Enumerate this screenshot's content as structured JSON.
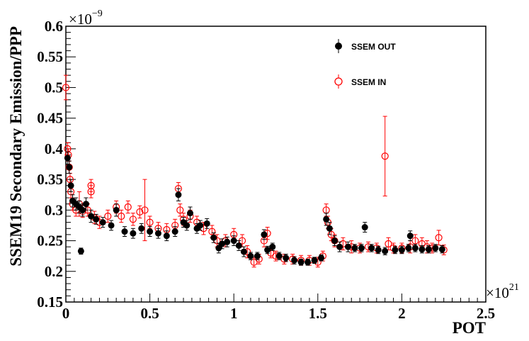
{
  "chart_data": {
    "type": "scatter",
    "xlabel": "POT",
    "ylabel": "SSEM19 Secondary Emission/PPP",
    "x_multiplier": "×10",
    "x_multiplier_exp": "21",
    "y_multiplier": "×10",
    "y_multiplier_exp": "−9",
    "xlim": [
      0,
      2.5
    ],
    "ylim": [
      0.15,
      0.6
    ],
    "x_ticks": [
      "0",
      "0.5",
      "1",
      "1.5",
      "2",
      "2.5"
    ],
    "y_ticks": [
      "0.15",
      "0.2",
      "0.25",
      "0.3",
      "0.35",
      "0.4",
      "0.45",
      "0.5",
      "0.55",
      "0.6"
    ],
    "legend_position": "top-right",
    "series": [
      {
        "name": "SSEM OUT",
        "marker": "filled-circle",
        "color": "#000000",
        "points": [
          [
            0.01,
            0.385,
            0.01
          ],
          [
            0.02,
            0.37,
            0.01
          ],
          [
            0.03,
            0.34,
            0.01
          ],
          [
            0.04,
            0.315,
            0.01
          ],
          [
            0.06,
            0.31,
            0.01
          ],
          [
            0.08,
            0.305,
            0.01
          ],
          [
            0.09,
            0.233,
            0.005
          ],
          [
            0.1,
            0.3,
            0.01
          ],
          [
            0.12,
            0.31,
            0.01
          ],
          [
            0.15,
            0.29,
            0.01
          ],
          [
            0.18,
            0.285,
            0.008
          ],
          [
            0.22,
            0.28,
            0.008
          ],
          [
            0.27,
            0.275,
            0.008
          ],
          [
            0.3,
            0.3,
            0.01
          ],
          [
            0.35,
            0.265,
            0.008
          ],
          [
            0.4,
            0.262,
            0.008
          ],
          [
            0.45,
            0.27,
            0.008
          ],
          [
            0.5,
            0.265,
            0.008
          ],
          [
            0.55,
            0.262,
            0.008
          ],
          [
            0.6,
            0.258,
            0.008
          ],
          [
            0.65,
            0.265,
            0.008
          ],
          [
            0.67,
            0.325,
            0.01
          ],
          [
            0.7,
            0.28,
            0.008
          ],
          [
            0.72,
            0.275,
            0.008
          ],
          [
            0.74,
            0.295,
            0.01
          ],
          [
            0.78,
            0.27,
            0.008
          ],
          [
            0.8,
            0.275,
            0.008
          ],
          [
            0.84,
            0.278,
            0.008
          ],
          [
            0.88,
            0.255,
            0.008
          ],
          [
            0.91,
            0.238,
            0.008
          ],
          [
            0.93,
            0.245,
            0.008
          ],
          [
            0.96,
            0.248,
            0.008
          ],
          [
            1.0,
            0.25,
            0.008
          ],
          [
            1.03,
            0.242,
            0.008
          ],
          [
            1.06,
            0.232,
            0.008
          ],
          [
            1.1,
            0.225,
            0.006
          ],
          [
            1.14,
            0.225,
            0.006
          ],
          [
            1.18,
            0.26,
            0.008
          ],
          [
            1.2,
            0.235,
            0.006
          ],
          [
            1.23,
            0.24,
            0.006
          ],
          [
            1.27,
            0.225,
            0.006
          ],
          [
            1.31,
            0.222,
            0.006
          ],
          [
            1.36,
            0.218,
            0.006
          ],
          [
            1.4,
            0.215,
            0.005
          ],
          [
            1.44,
            0.215,
            0.005
          ],
          [
            1.48,
            0.218,
            0.005
          ],
          [
            1.52,
            0.222,
            0.005
          ],
          [
            1.55,
            0.285,
            0.01
          ],
          [
            1.57,
            0.27,
            0.01
          ],
          [
            1.6,
            0.25,
            0.008
          ],
          [
            1.63,
            0.24,
            0.008
          ],
          [
            1.68,
            0.24,
            0.008
          ],
          [
            1.72,
            0.238,
            0.006
          ],
          [
            1.76,
            0.238,
            0.006
          ],
          [
            1.78,
            0.272,
            0.008
          ],
          [
            1.82,
            0.238,
            0.006
          ],
          [
            1.86,
            0.235,
            0.006
          ],
          [
            1.9,
            0.233,
            0.006
          ],
          [
            1.96,
            0.235,
            0.006
          ],
          [
            2.0,
            0.235,
            0.006
          ],
          [
            2.04,
            0.238,
            0.006
          ],
          [
            2.05,
            0.258,
            0.008
          ],
          [
            2.08,
            0.238,
            0.006
          ],
          [
            2.12,
            0.236,
            0.006
          ],
          [
            2.16,
            0.236,
            0.006
          ],
          [
            2.2,
            0.238,
            0.006
          ],
          [
            2.24,
            0.236,
            0.006
          ]
        ]
      },
      {
        "name": "SSEM IN",
        "marker": "open-circle",
        "color": "#ff0000",
        "points": [
          [
            0.0,
            0.5,
            0.02
          ],
          [
            0.01,
            0.4,
            0.01
          ],
          [
            0.015,
            0.39,
            0.01
          ],
          [
            0.02,
            0.37,
            0.01
          ],
          [
            0.025,
            0.35,
            0.01
          ],
          [
            0.03,
            0.33,
            0.01
          ],
          [
            0.04,
            0.31,
            0.01
          ],
          [
            0.06,
            0.3,
            0.01
          ],
          [
            0.08,
            0.31,
            0.02
          ],
          [
            0.1,
            0.298,
            0.01
          ],
          [
            0.13,
            0.3,
            0.01
          ],
          [
            0.15,
            0.34,
            0.01
          ],
          [
            0.15,
            0.33,
            0.01
          ],
          [
            0.17,
            0.288,
            0.01
          ],
          [
            0.2,
            0.28,
            0.01
          ],
          [
            0.25,
            0.29,
            0.01
          ],
          [
            0.3,
            0.305,
            0.01
          ],
          [
            0.33,
            0.29,
            0.01
          ],
          [
            0.37,
            0.305,
            0.01
          ],
          [
            0.4,
            0.285,
            0.01
          ],
          [
            0.44,
            0.297,
            0.01
          ],
          [
            0.47,
            0.3,
            0.05
          ],
          [
            0.5,
            0.28,
            0.01
          ],
          [
            0.55,
            0.27,
            0.01
          ],
          [
            0.6,
            0.268,
            0.01
          ],
          [
            0.65,
            0.275,
            0.01
          ],
          [
            0.67,
            0.335,
            0.01
          ],
          [
            0.68,
            0.3,
            0.01
          ],
          [
            0.7,
            0.285,
            0.01
          ],
          [
            0.74,
            0.29,
            0.01
          ],
          [
            0.78,
            0.28,
            0.01
          ],
          [
            0.82,
            0.27,
            0.01
          ],
          [
            0.87,
            0.265,
            0.01
          ],
          [
            0.9,
            0.25,
            0.01
          ],
          [
            0.95,
            0.25,
            0.01
          ],
          [
            1.0,
            0.26,
            0.01
          ],
          [
            1.05,
            0.25,
            0.01
          ],
          [
            1.08,
            0.232,
            0.01
          ],
          [
            1.12,
            0.215,
            0.008
          ],
          [
            1.15,
            0.22,
            0.008
          ],
          [
            1.18,
            0.25,
            0.01
          ],
          [
            1.2,
            0.262,
            0.01
          ],
          [
            1.22,
            0.23,
            0.008
          ],
          [
            1.25,
            0.225,
            0.008
          ],
          [
            1.3,
            0.22,
            0.008
          ],
          [
            1.35,
            0.22,
            0.008
          ],
          [
            1.4,
            0.218,
            0.008
          ],
          [
            1.45,
            0.218,
            0.008
          ],
          [
            1.5,
            0.215,
            0.008
          ],
          [
            1.53,
            0.225,
            0.008
          ],
          [
            1.55,
            0.3,
            0.01
          ],
          [
            1.56,
            0.28,
            0.01
          ],
          [
            1.58,
            0.26,
            0.01
          ],
          [
            1.6,
            0.25,
            0.01
          ],
          [
            1.65,
            0.245,
            0.01
          ],
          [
            1.7,
            0.24,
            0.01
          ],
          [
            1.75,
            0.238,
            0.008
          ],
          [
            1.8,
            0.24,
            0.008
          ],
          [
            1.85,
            0.238,
            0.008
          ],
          [
            1.9,
            0.388,
            0.065
          ],
          [
            1.92,
            0.245,
            0.01
          ],
          [
            1.95,
            0.238,
            0.008
          ],
          [
            2.0,
            0.238,
            0.008
          ],
          [
            2.05,
            0.24,
            0.01
          ],
          [
            2.08,
            0.25,
            0.01
          ],
          [
            2.12,
            0.245,
            0.01
          ],
          [
            2.15,
            0.24,
            0.01
          ],
          [
            2.18,
            0.238,
            0.008
          ],
          [
            2.22,
            0.255,
            0.012
          ],
          [
            2.25,
            0.235,
            0.008
          ]
        ]
      }
    ]
  }
}
